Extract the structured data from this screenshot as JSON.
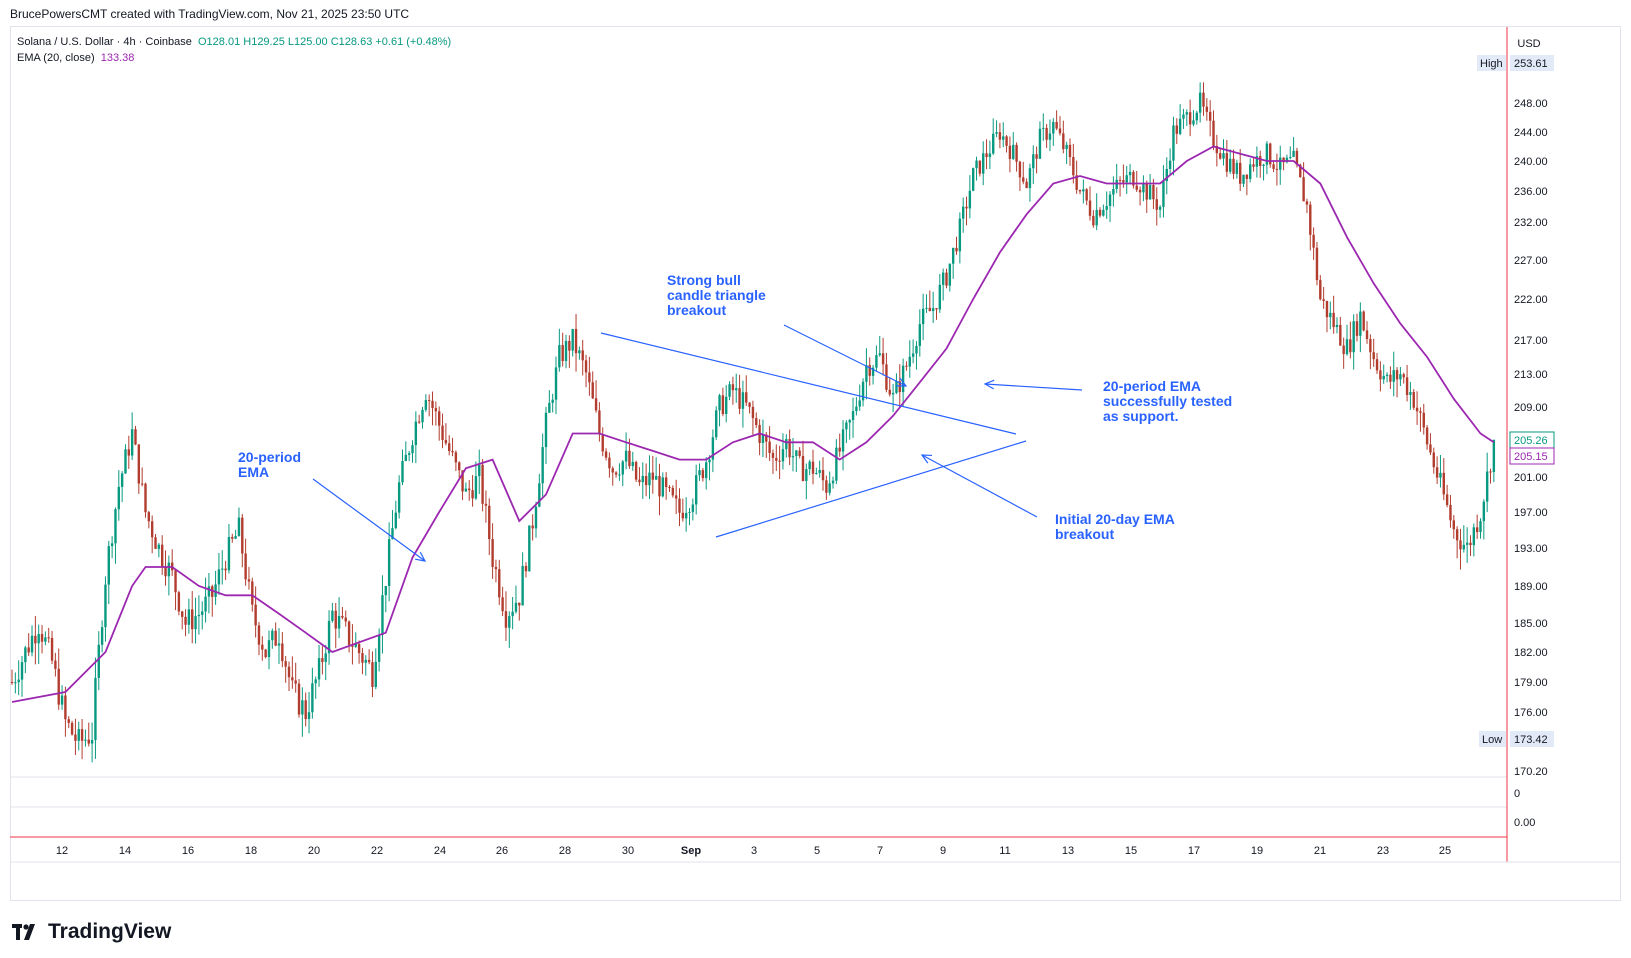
{
  "header": {
    "attribution": "BrucePowersCMT created with TradingView.com, Nov 21, 2025 23:50 UTC"
  },
  "legend": {
    "symbol": "Solana / U.S. Dollar · 4h · Coinbase",
    "ohlc": "O128.01 H129.25 L125.00 C128.63 +0.61 (+0.48%)",
    "ema_label": "EMA (20, close)",
    "ema_value": "133.38"
  },
  "brand": {
    "name": "TradingView"
  },
  "colors": {
    "up": "#089981",
    "down": "#b23c2e",
    "ema": "#9c27b0",
    "annotation": "#2962ff",
    "price_line": "#f23645"
  },
  "chart_data": {
    "type": "line",
    "currency": "USD",
    "xlabels": [
      "12",
      "14",
      "16",
      "18",
      "20",
      "22",
      "24",
      "26",
      "28",
      "30",
      "Sep",
      "3",
      "5",
      "7",
      "9",
      "11",
      "13",
      "15",
      "17",
      "19",
      "21",
      "23",
      "25"
    ],
    "yticks": [
      "253.61",
      "248.00",
      "244.00",
      "240.00",
      "236.00",
      "232.00",
      "227.00",
      "222.00",
      "217.00",
      "213.00",
      "209.00",
      "205.26",
      "205.15",
      "201.00",
      "197.00",
      "193.00",
      "189.00",
      "185.00",
      "182.00",
      "179.00",
      "176.00",
      "173.42",
      "170.20"
    ],
    "ylim": [
      170.2,
      253.61
    ],
    "high_label": "High",
    "high_value": "253.61",
    "low_label": "Low",
    "low_value": "173.42",
    "last_price": "205.26",
    "ema_last": "205.15",
    "sub_pane_ticks": [
      "0",
      "0.00"
    ],
    "price_path": [
      [
        0,
        179
      ],
      [
        2,
        185
      ],
      [
        3,
        181
      ],
      [
        4,
        175
      ],
      [
        5,
        173
      ],
      [
        6,
        174
      ],
      [
        7,
        190
      ],
      [
        8,
        200
      ],
      [
        9,
        206
      ],
      [
        10,
        197
      ],
      [
        11,
        193
      ],
      [
        12,
        190
      ],
      [
        13,
        185
      ],
      [
        14,
        186
      ],
      [
        15,
        188
      ],
      [
        16,
        192
      ],
      [
        17,
        195
      ],
      [
        18,
        186
      ],
      [
        19,
        182
      ],
      [
        20,
        184
      ],
      [
        21,
        178
      ],
      [
        22,
        176
      ],
      [
        23,
        180
      ],
      [
        24,
        186
      ],
      [
        25,
        184
      ],
      [
        26,
        182
      ],
      [
        27,
        180
      ],
      [
        28,
        190
      ],
      [
        29,
        200
      ],
      [
        30,
        206
      ],
      [
        31,
        211
      ],
      [
        32,
        207
      ],
      [
        33,
        203
      ],
      [
        34,
        199
      ],
      [
        35,
        201
      ],
      [
        36,
        192
      ],
      [
        37,
        186
      ],
      [
        38,
        188
      ],
      [
        39,
        196
      ],
      [
        40,
        207
      ],
      [
        41,
        215
      ],
      [
        42,
        217
      ],
      [
        43,
        213
      ],
      [
        44,
        206
      ],
      [
        45,
        202
      ],
      [
        46,
        203
      ],
      [
        47,
        200
      ],
      [
        48,
        201
      ],
      [
        49,
        199
      ],
      [
        50,
        197
      ],
      [
        51,
        199
      ],
      [
        52,
        203
      ],
      [
        53,
        209
      ],
      [
        54,
        211
      ],
      [
        55,
        209
      ],
      [
        56,
        206
      ],
      [
        57,
        203
      ],
      [
        58,
        205
      ],
      [
        59,
        202
      ],
      [
        60,
        202
      ],
      [
        61,
        200
      ],
      [
        62,
        204
      ],
      [
        63,
        208
      ],
      [
        64,
        214
      ],
      [
        65,
        215
      ],
      [
        66,
        210
      ],
      [
        67,
        214
      ],
      [
        68,
        219
      ],
      [
        69,
        221
      ],
      [
        70,
        225
      ],
      [
        71,
        231
      ],
      [
        72,
        238
      ],
      [
        73,
        241
      ],
      [
        74,
        244
      ],
      [
        75,
        241
      ],
      [
        76,
        237
      ],
      [
        77,
        243
      ],
      [
        78,
        245
      ],
      [
        79,
        241
      ],
      [
        80,
        236
      ],
      [
        81,
        233
      ],
      [
        82,
        235
      ],
      [
        83,
        237
      ],
      [
        84,
        238
      ],
      [
        85,
        236
      ],
      [
        86,
        234
      ],
      [
        87,
        244
      ],
      [
        88,
        246
      ],
      [
        89,
        248
      ],
      [
        90,
        243
      ],
      [
        91,
        240
      ],
      [
        92,
        238
      ],
      [
        93,
        240
      ],
      [
        94,
        241
      ],
      [
        95,
        239
      ],
      [
        96,
        240
      ],
      [
        97,
        234
      ],
      [
        98,
        222
      ],
      [
        99,
        219
      ],
      [
        100,
        216
      ],
      [
        101,
        220
      ],
      [
        102,
        215
      ],
      [
        103,
        212
      ],
      [
        104,
        213
      ],
      [
        105,
        210
      ],
      [
        106,
        205
      ],
      [
        107,
        200
      ],
      [
        108,
        195
      ],
      [
        109,
        193
      ],
      [
        110,
        197
      ],
      [
        111,
        205
      ]
    ],
    "ema_path": [
      [
        0,
        177
      ],
      [
        4,
        178
      ],
      [
        7,
        182
      ],
      [
        9,
        189
      ],
      [
        10,
        191
      ],
      [
        12,
        191
      ],
      [
        14,
        189
      ],
      [
        16,
        188
      ],
      [
        18,
        188
      ],
      [
        20,
        186
      ],
      [
        22,
        184
      ],
      [
        24,
        182
      ],
      [
        26,
        183
      ],
      [
        28,
        184
      ],
      [
        30,
        192
      ],
      [
        32,
        197
      ],
      [
        34,
        202
      ],
      [
        36,
        203
      ],
      [
        38,
        196
      ],
      [
        40,
        199
      ],
      [
        42,
        206
      ],
      [
        44,
        206
      ],
      [
        46,
        205
      ],
      [
        48,
        204
      ],
      [
        50,
        203
      ],
      [
        52,
        203
      ],
      [
        54,
        205
      ],
      [
        56,
        206
      ],
      [
        58,
        205
      ],
      [
        60,
        205
      ],
      [
        62,
        203
      ],
      [
        64,
        205
      ],
      [
        66,
        208
      ],
      [
        68,
        212
      ],
      [
        70,
        216
      ],
      [
        72,
        222
      ],
      [
        74,
        228
      ],
      [
        76,
        233
      ],
      [
        78,
        237
      ],
      [
        80,
        238
      ],
      [
        82,
        237
      ],
      [
        84,
        237
      ],
      [
        86,
        237
      ],
      [
        88,
        240
      ],
      [
        90,
        242
      ],
      [
        92,
        241
      ],
      [
        94,
        240
      ],
      [
        96,
        240
      ],
      [
        98,
        237
      ],
      [
        100,
        230
      ],
      [
        102,
        224
      ],
      [
        104,
        219
      ],
      [
        106,
        215
      ],
      [
        108,
        210
      ],
      [
        110,
        206
      ],
      [
        111,
        205
      ]
    ],
    "annotations": [
      {
        "text": "Strong bull\ncandle triangle\nbreakout"
      },
      {
        "text": "20-period\nEMA"
      },
      {
        "text": "20-period EMA\nsuccessfully tested\nas support."
      },
      {
        "text": "Initial 20-day EMA\nbreakout"
      }
    ]
  }
}
